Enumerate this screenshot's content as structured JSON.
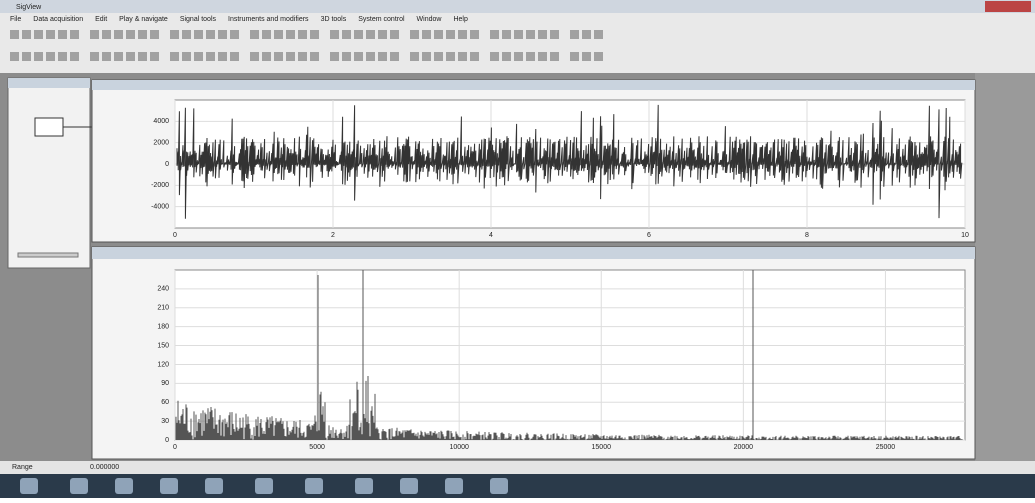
{
  "app_title": "SigView",
  "menu": [
    "File",
    "Data acquisition",
    "Edit",
    "Play & navigate",
    "Signal tools",
    "Instruments and modifiers",
    "3D tools",
    "System control",
    "Window",
    "Help"
  ],
  "status_bar": [
    "Range",
    "0.000000"
  ],
  "chart_data": [
    {
      "type": "waveform",
      "xlim": [
        0,
        10
      ],
      "xticks": [
        0,
        2,
        4,
        6,
        8,
        10
      ],
      "ylim": [
        -6000,
        6000
      ],
      "yticks": [
        -4000,
        -2000,
        0,
        2000,
        4000
      ],
      "grid": true
    },
    {
      "type": "spectrum",
      "xlim": [
        0,
        27800
      ],
      "xticks": [
        0,
        5000,
        10000,
        15000,
        20000,
        25000
      ],
      "ylim": [
        0,
        270
      ],
      "yticks": [
        0,
        30,
        60,
        90,
        120,
        150,
        180,
        210,
        240
      ],
      "grid": true
    }
  ]
}
